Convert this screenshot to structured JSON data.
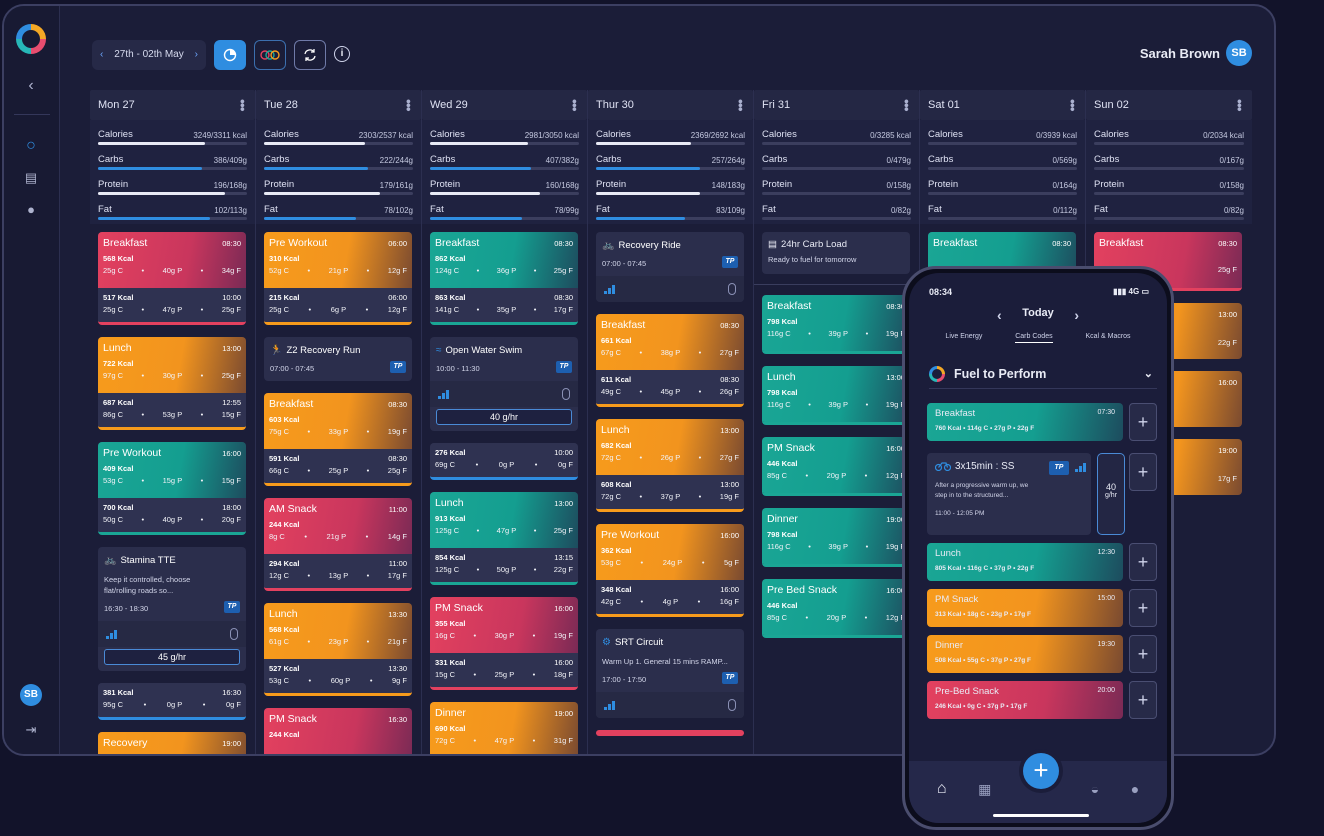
{
  "topbar": {
    "date_range": "27th - 02th May",
    "prev_icon": "chevron-left-icon",
    "next_icon": "chevron-right-icon",
    "user_name": "Sarah Brown",
    "user_initials": "SB"
  },
  "sidebar": {
    "initials": "SB"
  },
  "colors": {
    "calories": "#e8eaf5",
    "carbs": "#2f8de0",
    "protein": "#e8eaf5",
    "fat": "#2f8de0",
    "red": "#e3415f",
    "orange": "#f79b1c",
    "teal": "#1aa695",
    "blue": "#2f8de0"
  },
  "days": [
    {
      "label": "Mon 27",
      "macros": [
        {
          "name": "Calories",
          "value": "3249/3311 kcal",
          "pct": 0.72
        },
        {
          "name": "Carbs",
          "value": "386/409g",
          "pct": 0.7
        },
        {
          "name": "Protein",
          "value": "196/168g",
          "pct": 0.85
        },
        {
          "name": "Fat",
          "value": "102/113g",
          "pct": 0.75
        }
      ]
    },
    {
      "label": "Tue 28",
      "macros": [
        {
          "name": "Calories",
          "value": "2303/2537 kcal",
          "pct": 0.68
        },
        {
          "name": "Carbs",
          "value": "222/244g",
          "pct": 0.7
        },
        {
          "name": "Protein",
          "value": "179/161g",
          "pct": 0.78
        },
        {
          "name": "Fat",
          "value": "78/102g",
          "pct": 0.62
        }
      ]
    },
    {
      "label": "Wed 29",
      "macros": [
        {
          "name": "Calories",
          "value": "2981/3050 kcal",
          "pct": 0.66
        },
        {
          "name": "Carbs",
          "value": "407/382g",
          "pct": 0.68
        },
        {
          "name": "Protein",
          "value": "160/168g",
          "pct": 0.74
        },
        {
          "name": "Fat",
          "value": "78/99g",
          "pct": 0.62
        }
      ]
    },
    {
      "label": "Thur 30",
      "macros": [
        {
          "name": "Calories",
          "value": "2369/2692 kcal",
          "pct": 0.64
        },
        {
          "name": "Carbs",
          "value": "257/264g",
          "pct": 0.7
        },
        {
          "name": "Protein",
          "value": "148/183g",
          "pct": 0.7
        },
        {
          "name": "Fat",
          "value": "83/109g",
          "pct": 0.6
        }
      ]
    },
    {
      "label": "Fri 31",
      "macros": [
        {
          "name": "Calories",
          "value": "0/3285 kcal",
          "pct": 0
        },
        {
          "name": "Carbs",
          "value": "0/479g",
          "pct": 0
        },
        {
          "name": "Protein",
          "value": "0/158g",
          "pct": 0
        },
        {
          "name": "Fat",
          "value": "0/82g",
          "pct": 0
        }
      ]
    },
    {
      "label": "Sat 01",
      "macros": [
        {
          "name": "Calories",
          "value": "0/3939 kcal",
          "pct": 0
        },
        {
          "name": "Carbs",
          "value": "0/569g",
          "pct": 0
        },
        {
          "name": "Protein",
          "value": "0/164g",
          "pct": 0
        },
        {
          "name": "Fat",
          "value": "0/112g",
          "pct": 0
        }
      ]
    },
    {
      "label": "Sun 02",
      "macros": [
        {
          "name": "Calories",
          "value": "0/2034 kcal",
          "pct": 0
        },
        {
          "name": "Carbs",
          "value": "0/167g",
          "pct": 0
        },
        {
          "name": "Protein",
          "value": "0/158g",
          "pct": 0
        },
        {
          "name": "Fat",
          "value": "0/82g",
          "pct": 0
        }
      ]
    }
  ],
  "mon": [
    {
      "name": "Breakfast",
      "time": "08:30",
      "kcal": "568 Kcal",
      "c": "25g C",
      "p": "40g P",
      "f": "34g F",
      "fk": "517 Kcal",
      "ft": "10:00",
      "fc": "25g C",
      "fp": "47g P",
      "ff": "25g F"
    },
    {
      "name": "Lunch",
      "time": "13:00",
      "kcal": "722 Kcal",
      "c": "97g C",
      "p": "30g P",
      "f": "25g F",
      "fk": "687 Kcal",
      "ft": "12:55",
      "fc": "86g C",
      "fp": "53g P",
      "ff": "15g F"
    },
    {
      "name": "Pre Workout",
      "time": "16:00",
      "kcal": "409 Kcal",
      "c": "53g C",
      "p": "15g P",
      "f": "15g F",
      "fk": "700 Kcal",
      "ft": "18:00",
      "fc": "50g C",
      "fp": "40g P",
      "ff": "20g F"
    },
    {
      "name": "Stamina TTE",
      "desc1": "Keep it controlled, choose",
      "desc2": "flat/rolling roads so...",
      "time": "16:30 - 18:30",
      "gauge": "45 g/hr"
    },
    {
      "fk": "381 Kcal",
      "ft": "16:30",
      "fc": "95g C",
      "fp": "0g P",
      "ff": "0g F"
    },
    {
      "name": "Recovery",
      "time": "19:00"
    }
  ],
  "tue": [
    {
      "name": "Pre Workout",
      "time": "06:00",
      "kcal": "310 Kcal",
      "c": "52g C",
      "p": "21g P",
      "f": "12g F",
      "fk": "215 Kcal",
      "ft": "06:00",
      "fc": "25g C",
      "fp": "6g P",
      "ff": "12g F"
    },
    {
      "name": "Z2 Recovery Run",
      "time": "07:00 - 07:45"
    },
    {
      "name": "Breakfast",
      "time": "08:30",
      "kcal": "603 Kcal",
      "c": "75g C",
      "p": "33g P",
      "f": "19g F",
      "fk": "591 Kcal",
      "ft": "08:30",
      "fc": "66g C",
      "fp": "25g P",
      "ff": "25g F"
    },
    {
      "name": "AM Snack",
      "time": "11:00",
      "kcal": "244 Kcal",
      "c": "8g C",
      "p": "21g P",
      "f": "14g F",
      "fk": "294 Kcal",
      "ft": "11:00",
      "fc": "12g C",
      "fp": "13g P",
      "ff": "17g F"
    },
    {
      "name": "Lunch",
      "time": "13:30",
      "kcal": "568 Kcal",
      "c": "61g C",
      "p": "23g P",
      "f": "21g F",
      "fk": "527 Kcal",
      "ft": "13:30",
      "fc": "53g C",
      "fp": "60g P",
      "ff": "9g F"
    },
    {
      "name": "PM Snack",
      "time": "16:30",
      "kcal": "244 Kcal"
    }
  ],
  "wed": [
    {
      "name": "Breakfast",
      "time": "08:30",
      "kcal": "862 Kcal",
      "c": "124g C",
      "p": "36g P",
      "f": "25g F",
      "fk": "863 Kcal",
      "ft": "08:30",
      "fc": "141g C",
      "fp": "35g P",
      "ff": "17g F"
    },
    {
      "name": "Open Water Swim",
      "time": "10:00 - 11:30",
      "gauge": "40 g/hr"
    },
    {
      "fk": "276 Kcal",
      "ft": "10:00",
      "fc": "69g C",
      "fp": "0g P",
      "ff": "0g F"
    },
    {
      "name": "Lunch",
      "time": "13:00",
      "kcal": "913 Kcal",
      "c": "125g C",
      "p": "47g P",
      "f": "25g F",
      "fk": "854 Kcal",
      "ft": "13:15",
      "fc": "125g C",
      "fp": "50g P",
      "ff": "22g F"
    },
    {
      "name": "PM Snack",
      "time": "16:00",
      "kcal": "355 Kcal",
      "c": "16g C",
      "p": "30g P",
      "f": "19g F",
      "fk": "331 Kcal",
      "ft": "16:00",
      "fc": "15g C",
      "fp": "25g P",
      "ff": "18g F"
    },
    {
      "name": "Dinner",
      "time": "19:00",
      "kcal": "690 Kcal",
      "c": "72g C",
      "p": "47g P",
      "f": "31g F"
    }
  ],
  "thu": [
    {
      "name": "Recovery Ride",
      "time": "07:00 - 07:45"
    },
    {
      "name": "Breakfast",
      "time": "08:30",
      "kcal": "661 Kcal",
      "c": "67g C",
      "p": "38g P",
      "f": "27g F",
      "fk": "611 Kcal",
      "ft": "08:30",
      "fc": "49g C",
      "fp": "45g P",
      "ff": "26g F"
    },
    {
      "name": "Lunch",
      "time": "13:00",
      "kcal": "682 Kcal",
      "c": "72g C",
      "p": "26g P",
      "f": "27g F",
      "fk": "608 Kcal",
      "ft": "13:00",
      "fc": "72g C",
      "fp": "37g P",
      "ff": "19g F"
    },
    {
      "name": "Pre Workout",
      "time": "16:00",
      "kcal": "362 Kcal",
      "c": "53g C",
      "p": "24g P",
      "f": "5g F",
      "fk": "348 Kcal",
      "ft": "16:00",
      "fc": "42g C",
      "fp": "4g P",
      "ff": "16g F"
    },
    {
      "name": "SRT Circuit",
      "desc1": "Warm Up 1. General 15 mins RAMP...",
      "time": "17:00 - 17:50"
    }
  ],
  "fri": [
    {
      "name": "24hr Carb Load",
      "sub": "Ready to fuel for tomorrow"
    },
    {
      "name": "Breakfast",
      "time": "08:30",
      "kcal": "798 Kcal",
      "c": "116g C",
      "p": "39g P",
      "f": "19g F"
    },
    {
      "name": "Lunch",
      "time": "13:00",
      "kcal": "798 Kcal",
      "c": "116g C",
      "p": "39g P",
      "f": "19g F"
    },
    {
      "name": "PM Snack",
      "time": "16:00",
      "kcal": "446 Kcal",
      "c": "85g C",
      "p": "20g P",
      "f": "12g F"
    },
    {
      "name": "Dinner",
      "time": "19:00",
      "kcal": "798 Kcal",
      "c": "116g C",
      "p": "39g P",
      "f": "19g F"
    },
    {
      "name": "Pre Bed Snack",
      "time": "16:00",
      "kcal": "446 Kcal",
      "c": "85g C",
      "p": "20g P",
      "f": "12g F"
    }
  ],
  "sat": [
    {
      "name": "Breakfast",
      "time": "08:30"
    }
  ],
  "sun": [
    {
      "name": "Breakfast",
      "time": "08:30",
      "f": "25g F",
      "t2": "13:00",
      "f2": "22g F",
      "t3": "16:00",
      "t4": "19:00",
      "f4": "17g F"
    }
  ],
  "phone": {
    "clock": "08:34",
    "signal": "4G",
    "nav": "Today",
    "tabs": [
      "Live Energy",
      "Carb Codes",
      "Kcal & Macros"
    ],
    "title": "Fuel to Perform",
    "meals": [
      {
        "name": "Breakfast",
        "time": "07:30",
        "macros": "760 Kcal  •  114g C  •  27g P  •  22g F"
      },
      {
        "name": "Lunch",
        "time": "12:30",
        "macros": "805 Kcal  •  116g C  •  37g P  •  22g F"
      },
      {
        "name": "PM Snack",
        "time": "15:00",
        "macros": "313 Kcal  •  18g C  •  23g P  •  17g F"
      },
      {
        "name": "Dinner",
        "time": "19:30",
        "macros": "508 Kcal  •  55g C  •  37g P  •  27g F"
      },
      {
        "name": "Pre-Bed Snack",
        "time": "20:00",
        "macros": "246 Kcal  •  0g C  •  37g P  •  17g F"
      }
    ],
    "workout": {
      "name": "3x15min : SS",
      "desc1": "After a progressive warm up, we",
      "desc2": "step in to the structured...",
      "time": "11:00 - 12:05 PM",
      "gauge_val": "40",
      "gauge_unit": "g/hr"
    }
  }
}
